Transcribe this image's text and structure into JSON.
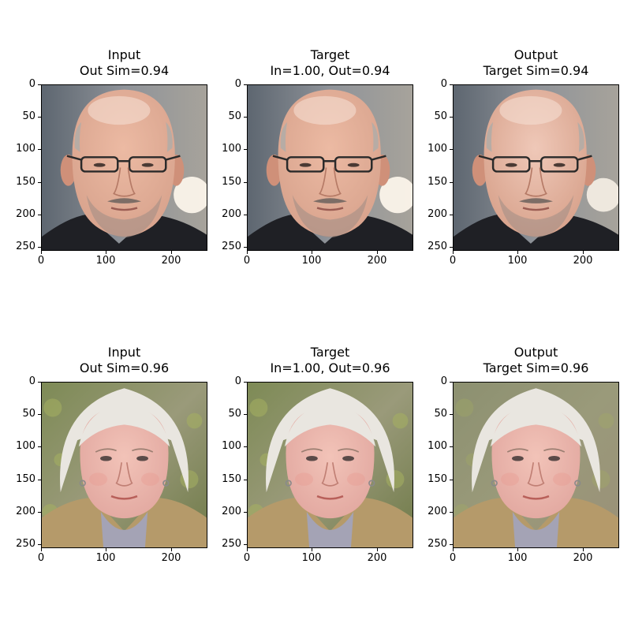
{
  "figure": {
    "rows": [
      {
        "panels": [
          {
            "title_line1": "Input",
            "title_line2": "Out Sim=0.94",
            "image": "face-man-bald-glasses-input"
          },
          {
            "title_line1": "Target",
            "title_line2": "In=1.00, Out=0.94",
            "image": "face-man-bald-glasses-target"
          },
          {
            "title_line1": "Output",
            "title_line2": "Target Sim=0.94",
            "image": "face-man-bald-glasses-output"
          }
        ]
      },
      {
        "panels": [
          {
            "title_line1": "Input",
            "title_line2": "Out Sim=0.96",
            "image": "face-woman-white-hair-input"
          },
          {
            "title_line1": "Target",
            "title_line2": "In=1.00, Out=0.96",
            "image": "face-woman-white-hair-target"
          },
          {
            "title_line1": "Output",
            "title_line2": "Target Sim=0.96",
            "image": "face-woman-white-hair-output"
          }
        ]
      }
    ],
    "yticks": [
      "0",
      "50",
      "100",
      "150",
      "200",
      "250"
    ],
    "xticks": [
      "0",
      "100",
      "200"
    ],
    "colors": {
      "skin_man": "#d9a48e",
      "skin_woman": "#e2a8a0",
      "hair_woman": "#e9e6e0",
      "coat_man": "#1f2025",
      "coat_woman": "#b59a6a",
      "bg_man": "#8f9399",
      "bg_woman": "#7d8a55",
      "bokeh": "#fbf4ea"
    }
  }
}
